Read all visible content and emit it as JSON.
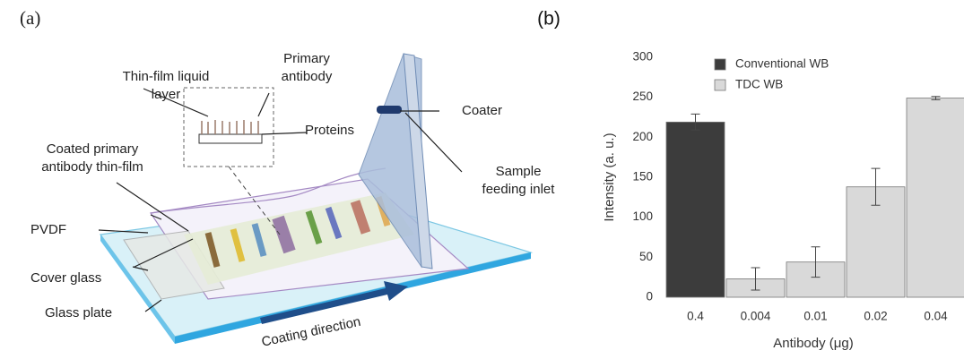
{
  "panel_a": {
    "label": "(a)",
    "thin_film_layer": [
      "Thin-film liquid",
      "layer"
    ],
    "primary_antibody": [
      "Primary",
      "antibody"
    ],
    "proteins": "Proteins",
    "coater": "Coater",
    "coated_film": [
      "Coated primary",
      "antibody thin-film"
    ],
    "sample_inlet": [
      "Sample",
      "feeding inlet"
    ],
    "pvdf": "PVDF",
    "cover_glass": "Cover glass",
    "glass_plate": "Glass plate",
    "coating_direction": "Coating direction"
  },
  "chart_data": {
    "type": "bar",
    "panel_label": "(b)",
    "x_label": "Antibody  (μg)",
    "y_label": "Intensity (a. u.)",
    "categories": [
      "0.4",
      "0.004",
      "0.01",
      "0.02",
      "0.04"
    ],
    "series": [
      {
        "name": "Conventional WB",
        "color": "#3c3c3c",
        "values": [
          219,
          null,
          null,
          null,
          null
        ],
        "errors": [
          10,
          null,
          null,
          null,
          null
        ]
      },
      {
        "name": "TDC WB",
        "color": "#d9d9d9",
        "values": [
          null,
          23,
          44,
          138,
          249
        ],
        "errors": [
          null,
          14,
          19,
          23,
          2
        ]
      }
    ],
    "ylim": [
      0,
      300
    ],
    "yticks": [
      0,
      50,
      100,
      150,
      200,
      250,
      300
    ],
    "grid": false
  }
}
